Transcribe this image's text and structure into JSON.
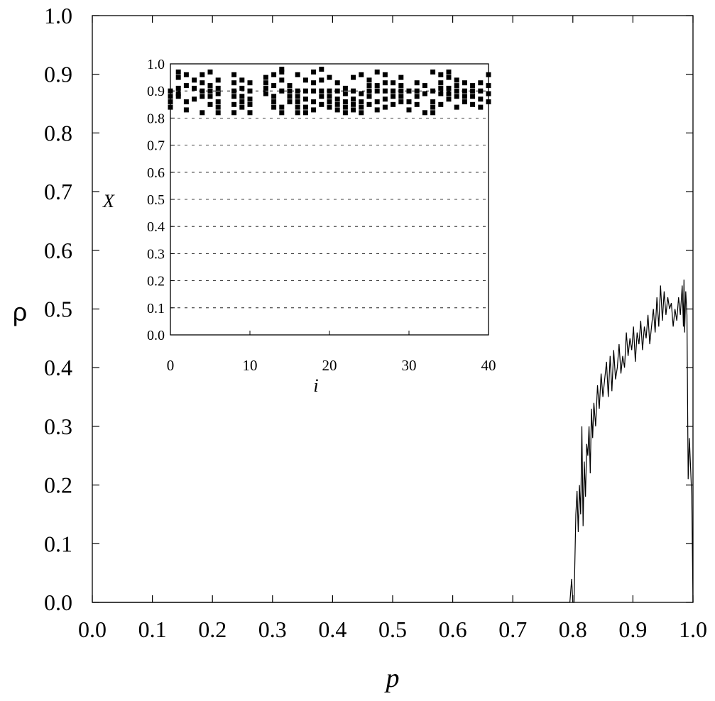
{
  "chart_data": [
    {
      "type": "line",
      "title": "",
      "xlabel": "p",
      "ylabel": "ρ",
      "xlim": [
        0.0,
        1.0
      ],
      "ylim": [
        0.0,
        1.0
      ],
      "x_ticks": [
        "0.0",
        "0.1",
        "0.2",
        "0.3",
        "0.4",
        "0.5",
        "0.6",
        "0.7",
        "0.8",
        "0.9",
        "1.0"
      ],
      "y_ticks": [
        "0.0",
        "0.1",
        "0.2",
        "0.3",
        "0.4",
        "0.5",
        "0.6",
        "0.7",
        "0.8",
        "0.9",
        "1.0"
      ],
      "grid": false,
      "series": [
        {
          "x": [
            0.0,
            0.795,
            0.798,
            0.8,
            0.802,
            0.805,
            0.807,
            0.809,
            0.811,
            0.813,
            0.815,
            0.817,
            0.819,
            0.821,
            0.823,
            0.825,
            0.827,
            0.829,
            0.831,
            0.833,
            0.835,
            0.838,
            0.841,
            0.844,
            0.847,
            0.85,
            0.853,
            0.856,
            0.859,
            0.862,
            0.865,
            0.868,
            0.871,
            0.874,
            0.877,
            0.88,
            0.883,
            0.886,
            0.889,
            0.892,
            0.895,
            0.898,
            0.901,
            0.904,
            0.907,
            0.91,
            0.913,
            0.916,
            0.919,
            0.922,
            0.925,
            0.928,
            0.931,
            0.934,
            0.937,
            0.94,
            0.943,
            0.946,
            0.949,
            0.952,
            0.955,
            0.958,
            0.961,
            0.964,
            0.967,
            0.97,
            0.973,
            0.976,
            0.979,
            0.982,
            0.984,
            0.985,
            0.986,
            0.988,
            0.99,
            0.992,
            0.994,
            0.996,
            0.998,
            1.0
          ],
          "values": [
            0.0,
            0.0,
            0.04,
            0.0,
            0.0,
            0.15,
            0.19,
            0.12,
            0.2,
            0.15,
            0.3,
            0.13,
            0.24,
            0.18,
            0.27,
            0.25,
            0.3,
            0.22,
            0.33,
            0.28,
            0.34,
            0.3,
            0.37,
            0.33,
            0.39,
            0.35,
            0.38,
            0.41,
            0.35,
            0.42,
            0.36,
            0.43,
            0.38,
            0.4,
            0.44,
            0.39,
            0.42,
            0.4,
            0.46,
            0.42,
            0.45,
            0.43,
            0.47,
            0.41,
            0.46,
            0.44,
            0.48,
            0.43,
            0.47,
            0.45,
            0.49,
            0.44,
            0.47,
            0.5,
            0.46,
            0.52,
            0.47,
            0.54,
            0.48,
            0.53,
            0.49,
            0.52,
            0.5,
            0.51,
            0.47,
            0.5,
            0.48,
            0.52,
            0.49,
            0.54,
            0.47,
            0.55,
            0.46,
            0.53,
            0.49,
            0.21,
            0.28,
            0.23,
            0.18,
            0.0
          ]
        }
      ]
    },
    {
      "type": "scatter",
      "title": "",
      "xlabel": "i",
      "ylabel": "X",
      "xlim": [
        0,
        40
      ],
      "ylim": [
        0.0,
        1.0
      ],
      "x_ticks": [
        "0",
        "10",
        "20",
        "30",
        "40"
      ],
      "y_ticks": [
        "0.0",
        "0.1",
        "0.2",
        "0.3",
        "0.4",
        "0.5",
        "0.6",
        "0.7",
        "0.8",
        "0.9",
        "1.0"
      ],
      "grid": true,
      "series": [
        {
          "x": [
            0,
            0,
            0,
            0,
            1,
            1,
            1,
            1,
            1,
            2,
            2,
            2,
            2,
            3,
            3,
            3,
            4,
            4,
            4,
            4,
            4,
            5,
            5,
            5,
            5,
            5,
            6,
            6,
            6,
            6,
            6,
            6,
            8,
            8,
            8,
            8,
            8,
            8,
            9,
            9,
            9,
            9,
            9,
            10,
            10,
            10,
            10,
            10,
            12,
            12,
            12,
            12,
            13,
            13,
            13,
            13,
            13,
            14,
            14,
            14,
            14,
            14,
            14,
            15,
            15,
            15,
            15,
            16,
            16,
            16,
            16,
            16,
            16,
            17,
            17,
            17,
            17,
            17,
            18,
            18,
            18,
            18,
            18,
            19,
            19,
            19,
            19,
            19,
            20,
            20,
            20,
            20,
            20,
            21,
            21,
            21,
            21,
            21,
            22,
            22,
            22,
            22,
            22,
            23,
            23,
            23,
            23,
            23,
            24,
            24,
            24,
            24,
            24,
            25,
            25,
            25,
            25,
            25,
            26,
            26,
            26,
            26,
            26,
            27,
            27,
            27,
            27,
            27,
            28,
            28,
            28,
            28,
            29,
            29,
            29,
            29,
            29,
            30,
            30,
            30,
            31,
            31,
            31,
            31,
            32,
            32,
            32,
            33,
            33,
            33,
            33,
            33,
            34,
            34,
            34,
            34,
            34,
            35,
            35,
            35,
            35,
            35,
            36,
            36,
            36,
            36,
            36,
            37,
            37,
            37,
            37,
            38,
            38,
            38,
            38,
            39,
            39,
            39,
            39,
            40,
            40,
            40,
            40
          ],
          "values": [
            0.84,
            0.86,
            0.88,
            0.9,
            0.88,
            0.89,
            0.91,
            0.95,
            0.97,
            0.83,
            0.86,
            0.92,
            0.96,
            0.87,
            0.91,
            0.94,
            0.82,
            0.88,
            0.9,
            0.93,
            0.96,
            0.85,
            0.88,
            0.9,
            0.92,
            0.97,
            0.82,
            0.84,
            0.86,
            0.89,
            0.91,
            0.94,
            0.82,
            0.85,
            0.88,
            0.9,
            0.93,
            0.96,
            0.84,
            0.88,
            0.91,
            0.94,
            0.86,
            0.82,
            0.85,
            0.87,
            0.9,
            0.93,
            0.89,
            0.91,
            0.93,
            0.95,
            0.84,
            0.86,
            0.88,
            0.92,
            0.96,
            0.82,
            0.84,
            0.9,
            0.94,
            0.97,
            0.98,
            0.86,
            0.88,
            0.9,
            0.92,
            0.82,
            0.84,
            0.86,
            0.88,
            0.9,
            0.96,
            0.82,
            0.84,
            0.87,
            0.9,
            0.94,
            0.83,
            0.86,
            0.9,
            0.93,
            0.97,
            0.85,
            0.88,
            0.9,
            0.94,
            0.98,
            0.84,
            0.86,
            0.88,
            0.9,
            0.95,
            0.83,
            0.85,
            0.87,
            0.9,
            0.93,
            0.82,
            0.84,
            0.86,
            0.89,
            0.91,
            0.83,
            0.85,
            0.87,
            0.9,
            0.95,
            0.82,
            0.84,
            0.86,
            0.89,
            0.96,
            0.85,
            0.88,
            0.9,
            0.92,
            0.94,
            0.83,
            0.86,
            0.9,
            0.92,
            0.97,
            0.84,
            0.87,
            0.9,
            0.93,
            0.96,
            0.85,
            0.88,
            0.9,
            0.93,
            0.86,
            0.88,
            0.9,
            0.92,
            0.95,
            0.83,
            0.86,
            0.9,
            0.85,
            0.88,
            0.9,
            0.93,
            0.82,
            0.89,
            0.92,
            0.82,
            0.84,
            0.86,
            0.9,
            0.97,
            0.85,
            0.89,
            0.91,
            0.93,
            0.96,
            0.87,
            0.89,
            0.91,
            0.95,
            0.97,
            0.84,
            0.88,
            0.9,
            0.92,
            0.94,
            0.86,
            0.88,
            0.9,
            0.93,
            0.85,
            0.88,
            0.9,
            0.92,
            0.84,
            0.87,
            0.9,
            0.93,
            0.86,
            0.89,
            0.92,
            0.96
          ]
        }
      ]
    }
  ]
}
